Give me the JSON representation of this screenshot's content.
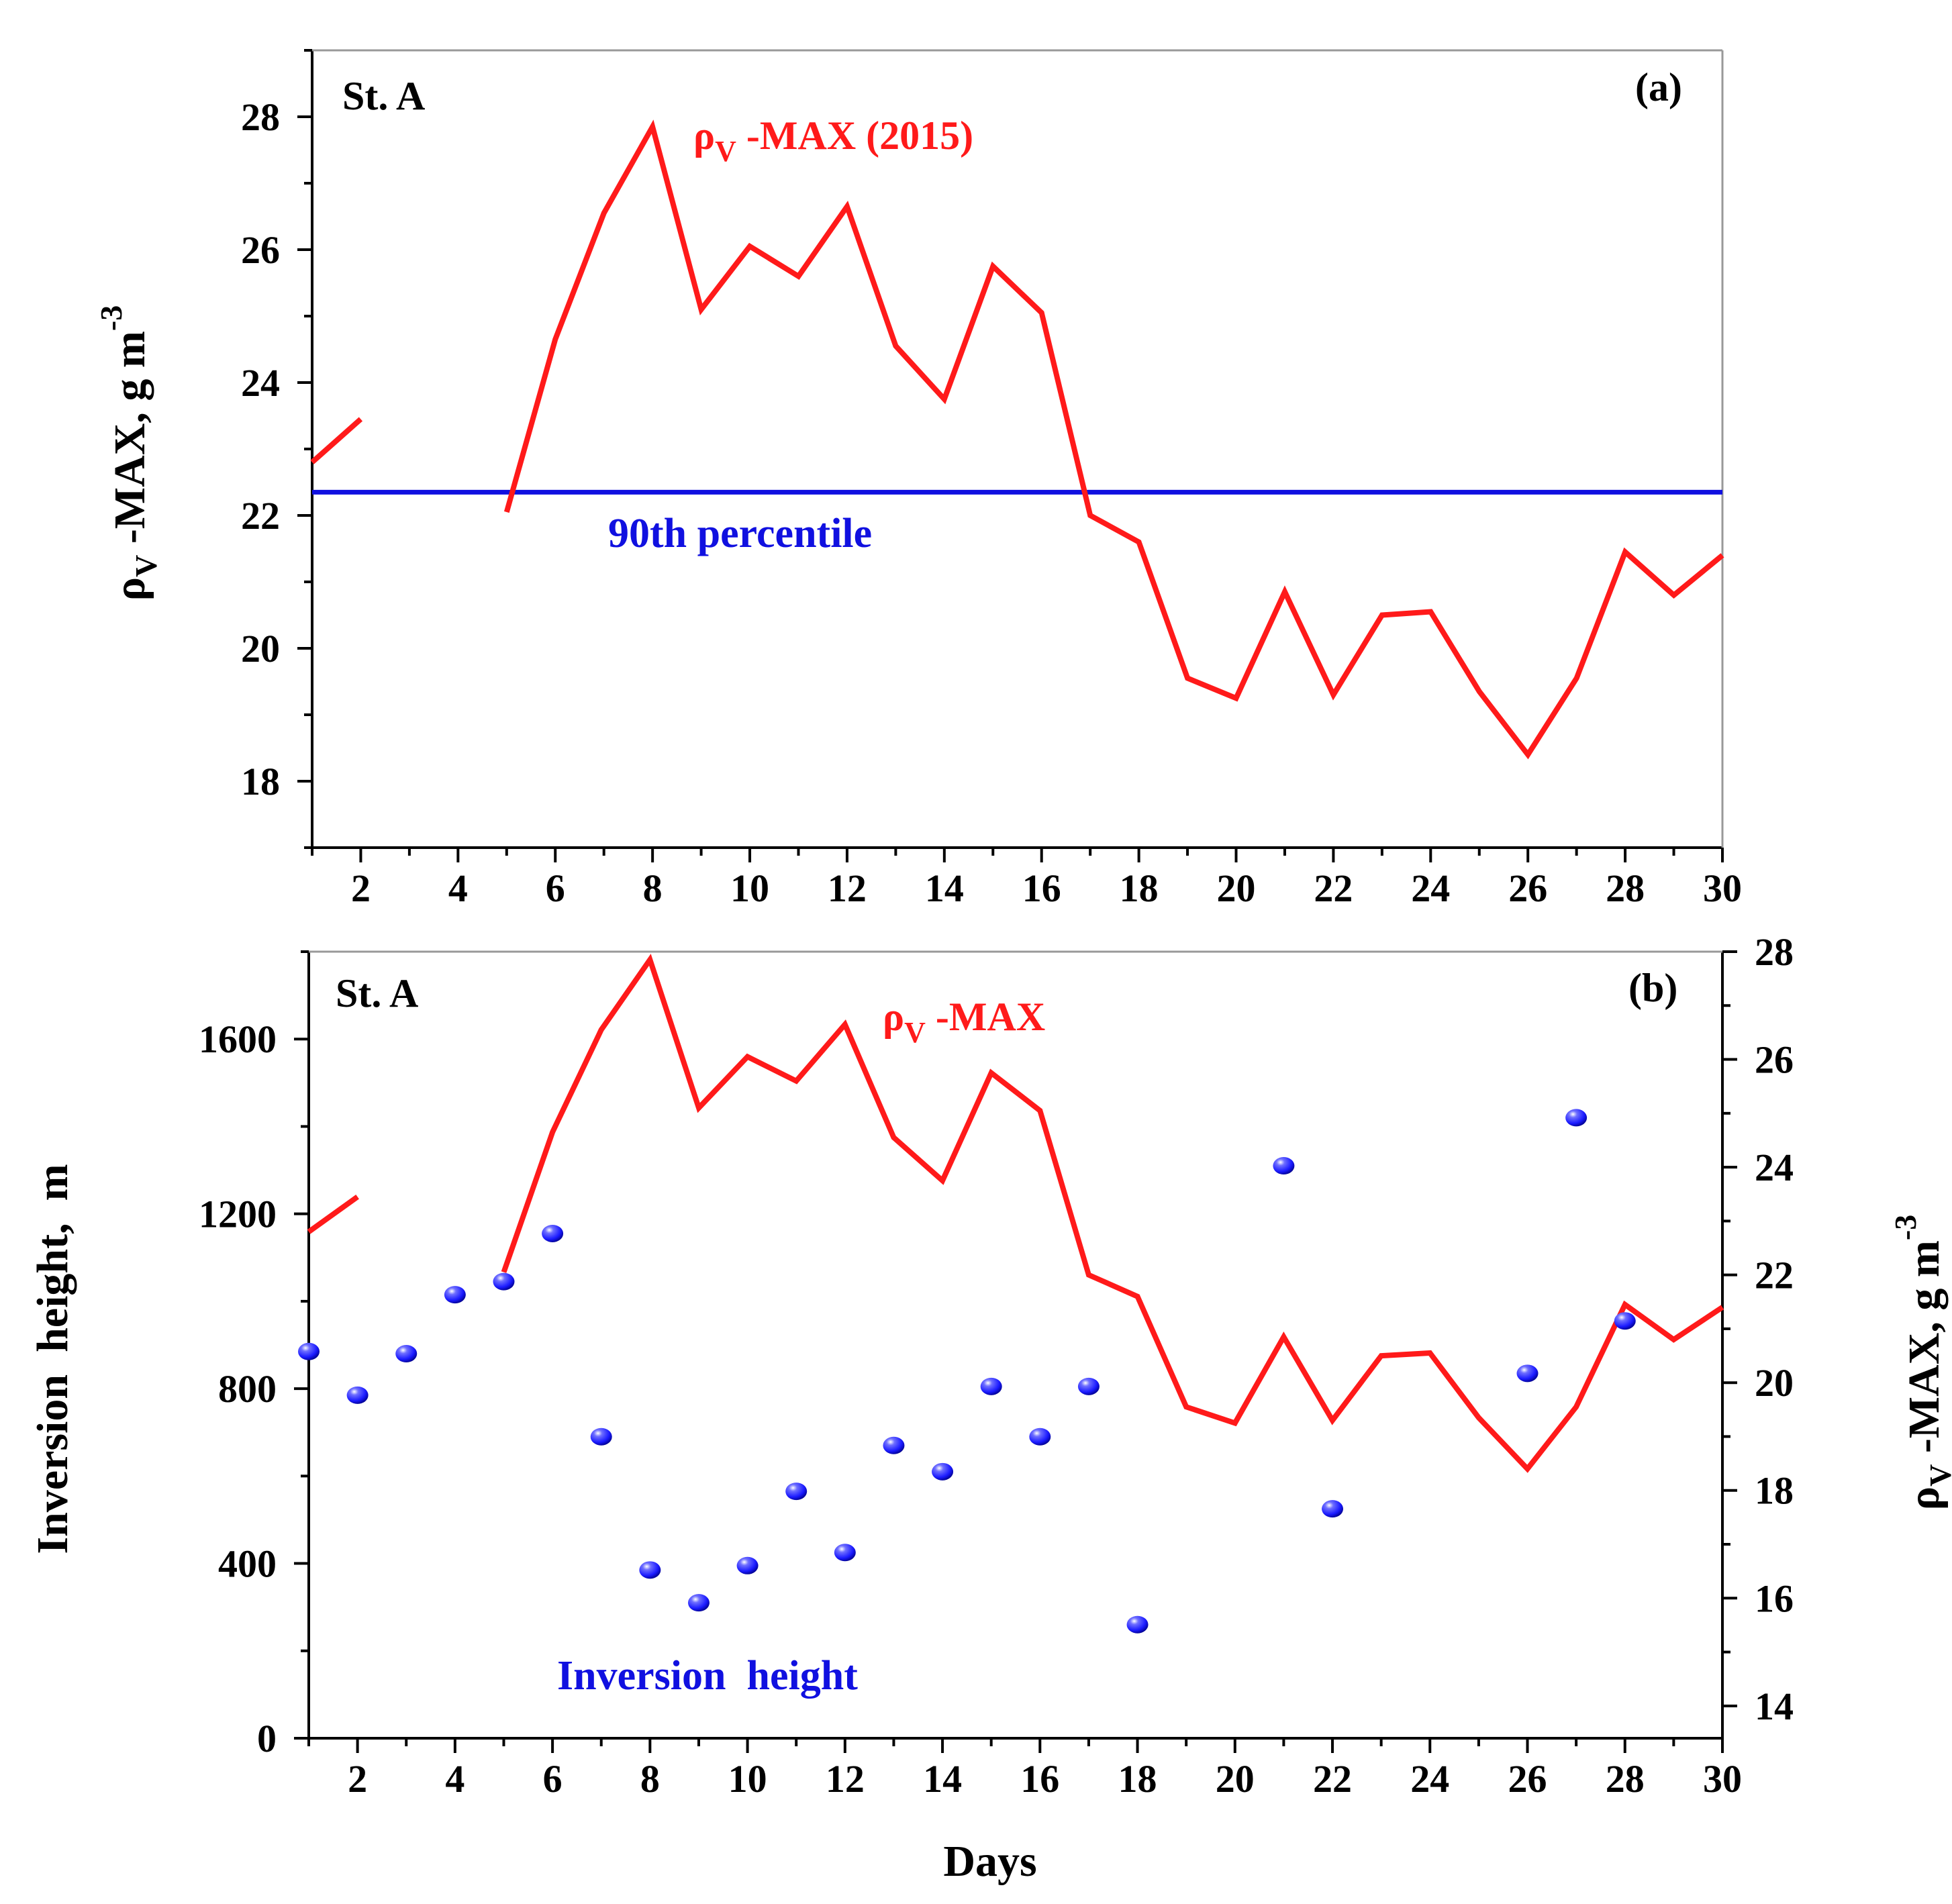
{
  "colors": {
    "line": "#ff1a1a",
    "percentile": "#1010e0",
    "markers": "#1a1aff",
    "axis": "#000000"
  },
  "chart_data": [
    {
      "id": "a",
      "type": "line",
      "panel_label": "(a)",
      "station_label": "St. A",
      "ylabel_main": "ρ",
      "ylabel_sub": "V",
      "ylabel_rest": " -MAX, g m",
      "ylabel_sup": "-3",
      "xlim": [
        1,
        30
      ],
      "ylim": [
        17,
        29
      ],
      "x_ticks": [
        2,
        4,
        6,
        8,
        10,
        12,
        14,
        16,
        18,
        20,
        22,
        24,
        26,
        28,
        30
      ],
      "y_ticks": [
        18,
        20,
        22,
        24,
        26,
        28
      ],
      "series": [
        {
          "name": "ρV -MAX (2015)",
          "legend_main": "ρ",
          "legend_sub": "V",
          "legend_rest": " -MAX (2015)",
          "x": [
            1,
            2,
            3,
            4,
            5,
            6,
            7,
            8,
            9,
            10,
            11,
            12,
            13,
            14,
            15,
            16,
            17,
            18,
            19,
            20,
            21,
            22,
            23,
            24,
            25,
            26,
            27,
            28,
            29,
            30
          ],
          "values": [
            22.8,
            23.45,
            null,
            null,
            22.05,
            24.65,
            26.55,
            27.85,
            25.1,
            26.05,
            25.6,
            26.65,
            24.55,
            23.75,
            25.75,
            25.05,
            22.0,
            21.6,
            19.55,
            19.25,
            20.85,
            19.3,
            20.5,
            20.55,
            19.35,
            18.4,
            19.55,
            21.45,
            20.8,
            21.4
          ]
        }
      ],
      "reference_line": {
        "name": "90th percentile",
        "value": 22.35
      }
    },
    {
      "id": "b",
      "type": "line",
      "panel_label": "(b)",
      "station_label": "St. A",
      "xlabel": "Days",
      "ylabel_left": "Inversion  height,  m",
      "ylabel_right_main": "ρ",
      "ylabel_right_sub": "V",
      "ylabel_right_rest": " -MAX, g m",
      "ylabel_right_sup": "-3",
      "xlim": [
        1,
        30
      ],
      "ylim_left": [
        0,
        1800
      ],
      "ylim_right": [
        13.4,
        28
      ],
      "x_ticks": [
        2,
        4,
        6,
        8,
        10,
        12,
        14,
        16,
        18,
        20,
        22,
        24,
        26,
        28,
        30
      ],
      "y_ticks_left": [
        0,
        400,
        800,
        1200,
        1600
      ],
      "y_ticks_right": [
        14,
        16,
        18,
        20,
        22,
        24,
        26,
        28
      ],
      "series": [
        {
          "name": "ρV -MAX",
          "legend_main": "ρ",
          "legend_sub": "V",
          "legend_rest": " -MAX",
          "axis": "right",
          "kind": "line",
          "x": [
            1,
            2,
            3,
            4,
            5,
            6,
            7,
            8,
            9,
            10,
            11,
            12,
            13,
            14,
            15,
            16,
            17,
            18,
            19,
            20,
            21,
            22,
            23,
            24,
            25,
            26,
            27,
            28,
            29,
            30
          ],
          "values": [
            22.8,
            23.45,
            null,
            null,
            22.05,
            24.65,
            26.55,
            27.85,
            25.1,
            26.05,
            25.6,
            26.65,
            24.55,
            23.75,
            25.75,
            25.05,
            22.0,
            21.6,
            19.55,
            19.25,
            20.85,
            19.3,
            20.5,
            20.55,
            19.35,
            18.4,
            19.55,
            21.45,
            20.8,
            21.4
          ]
        },
        {
          "name": "Inversion  height",
          "axis": "left",
          "kind": "scatter",
          "x": [
            1,
            2,
            3,
            4,
            5,
            6,
            7,
            8,
            9,
            10,
            11,
            12,
            13,
            14,
            15,
            16,
            17,
            18,
            21,
            22,
            26,
            27,
            28
          ],
          "values": [
            885,
            785,
            880,
            1015,
            1045,
            1155,
            690,
            385,
            310,
            395,
            565,
            425,
            670,
            610,
            805,
            690,
            805,
            260,
            1310,
            525,
            835,
            1420,
            955
          ]
        }
      ]
    }
  ]
}
